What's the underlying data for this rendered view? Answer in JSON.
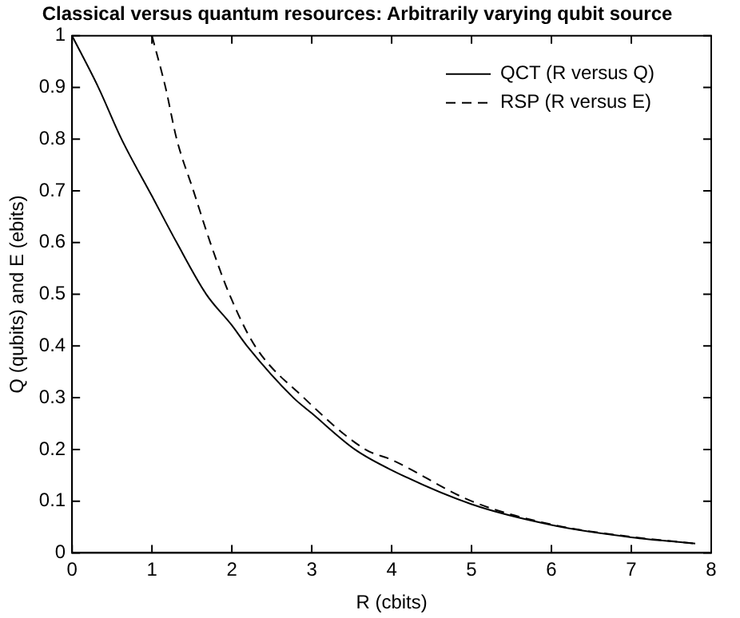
{
  "chart_data": {
    "type": "line",
    "title": "Classical versus quantum resources: Arbitrarily varying qubit source",
    "xlabel": "R (cbits)",
    "ylabel": "Q (qubits) and E (ebits)",
    "xlim": [
      0,
      8
    ],
    "xticks": [
      0,
      1,
      2,
      3,
      4,
      5,
      6,
      7,
      8
    ],
    "ylim": [
      0,
      1
    ],
    "yticks": [
      0,
      0.1,
      0.2,
      0.3,
      0.4,
      0.5,
      0.6,
      0.7,
      0.8,
      0.9,
      1
    ],
    "grid": false,
    "legend": "top right",
    "marker": "none",
    "series": [
      {
        "name": "QCT (R versus Q)",
        "color": "#000000",
        "line_style": "solid",
        "x": [
          0,
          0.33,
          0.62,
          1,
          1.31,
          1.68,
          2,
          2.19,
          2.77,
          3,
          3.54,
          4,
          5,
          6,
          7,
          7.8
        ],
        "values": [
          1,
          0.9,
          0.8,
          0.69,
          0.6,
          0.5,
          0.44,
          0.4,
          0.3,
          0.27,
          0.2,
          0.16,
          0.094,
          0.054,
          0.03,
          0.018
        ]
      },
      {
        "name": "RSP (R versus E)",
        "color": "#000000",
        "line_style": "dashed",
        "x": [
          1,
          1.17,
          1.31,
          1.52,
          1.73,
          1.97,
          2.29,
          2.9,
          3.67,
          4,
          5,
          6,
          7,
          7.8
        ],
        "values": [
          1,
          0.9,
          0.8,
          0.7,
          0.6,
          0.5,
          0.4,
          0.3,
          0.2,
          0.18,
          0.1,
          0.055,
          0.031,
          0.018
        ]
      }
    ]
  }
}
